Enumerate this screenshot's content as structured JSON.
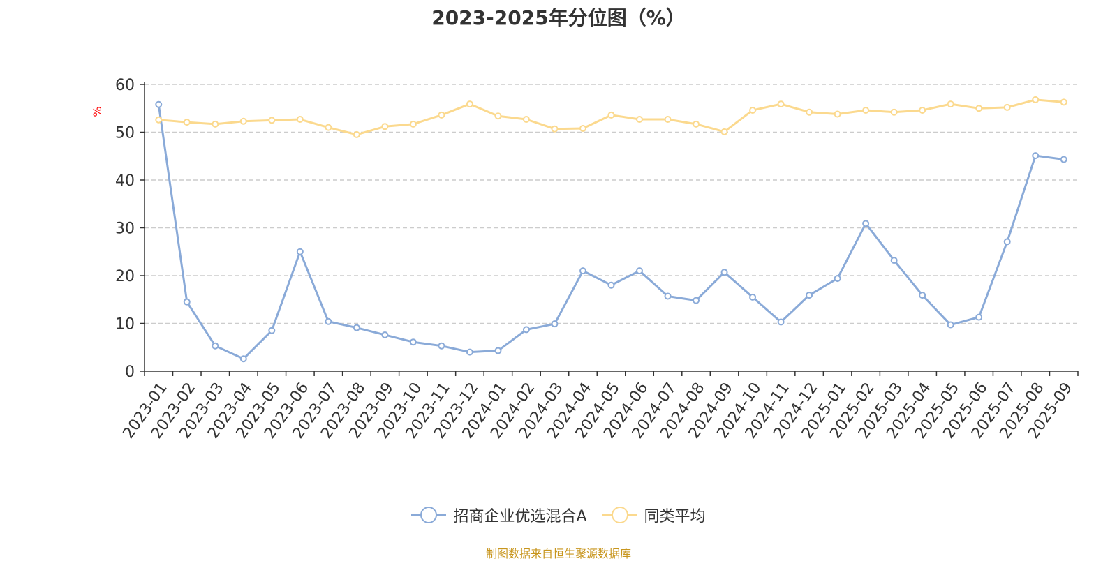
{
  "chart_data": {
    "type": "line",
    "title": "2023-2025年分位图（%）",
    "ylabel": "%",
    "xlabel": "",
    "ylim": [
      0,
      60
    ],
    "yticks": [
      0,
      10,
      20,
      30,
      40,
      50,
      60
    ],
    "grid": true,
    "legend_position": "bottom",
    "categories": [
      "2023-01",
      "2023-02",
      "2023-03",
      "2023-04",
      "2023-05",
      "2023-06",
      "2023-07",
      "2023-08",
      "2023-09",
      "2023-10",
      "2023-11",
      "2023-12",
      "2024-01",
      "2024-02",
      "2024-03",
      "2024-04",
      "2024-05",
      "2024-06",
      "2024-07",
      "2024-08",
      "2024-09",
      "2024-10",
      "2024-11",
      "2024-12",
      "2025-01",
      "2025-02",
      "2025-03",
      "2025-04",
      "2025-05",
      "2025-06",
      "2025-07",
      "2025-08",
      "2025-09"
    ],
    "series": [
      {
        "name": "招商企业优选混合A",
        "color": "#8aaad8",
        "values": [
          55.8,
          14.5,
          5.3,
          2.6,
          8.5,
          25.0,
          10.4,
          9.1,
          7.6,
          6.1,
          5.3,
          4.0,
          4.3,
          8.7,
          9.9,
          21.0,
          18.0,
          21.0,
          15.7,
          14.8,
          20.7,
          15.5,
          10.3,
          15.9,
          19.4,
          30.9,
          23.2,
          15.9,
          9.7,
          11.3,
          27.1,
          45.1,
          44.3
        ]
      },
      {
        "name": "同类平均",
        "color": "#fbd98e",
        "values": [
          52.6,
          52.1,
          51.7,
          52.3,
          52.5,
          52.7,
          51.0,
          49.5,
          51.2,
          51.7,
          53.6,
          55.9,
          53.4,
          52.7,
          50.7,
          50.8,
          53.6,
          52.7,
          52.7,
          51.7,
          50.1,
          54.6,
          55.9,
          54.2,
          53.8,
          54.6,
          54.2,
          54.6,
          55.9,
          55.0,
          55.2,
          56.8,
          56.3
        ]
      }
    ]
  },
  "source": "制图数据来自恒生聚源数据库"
}
